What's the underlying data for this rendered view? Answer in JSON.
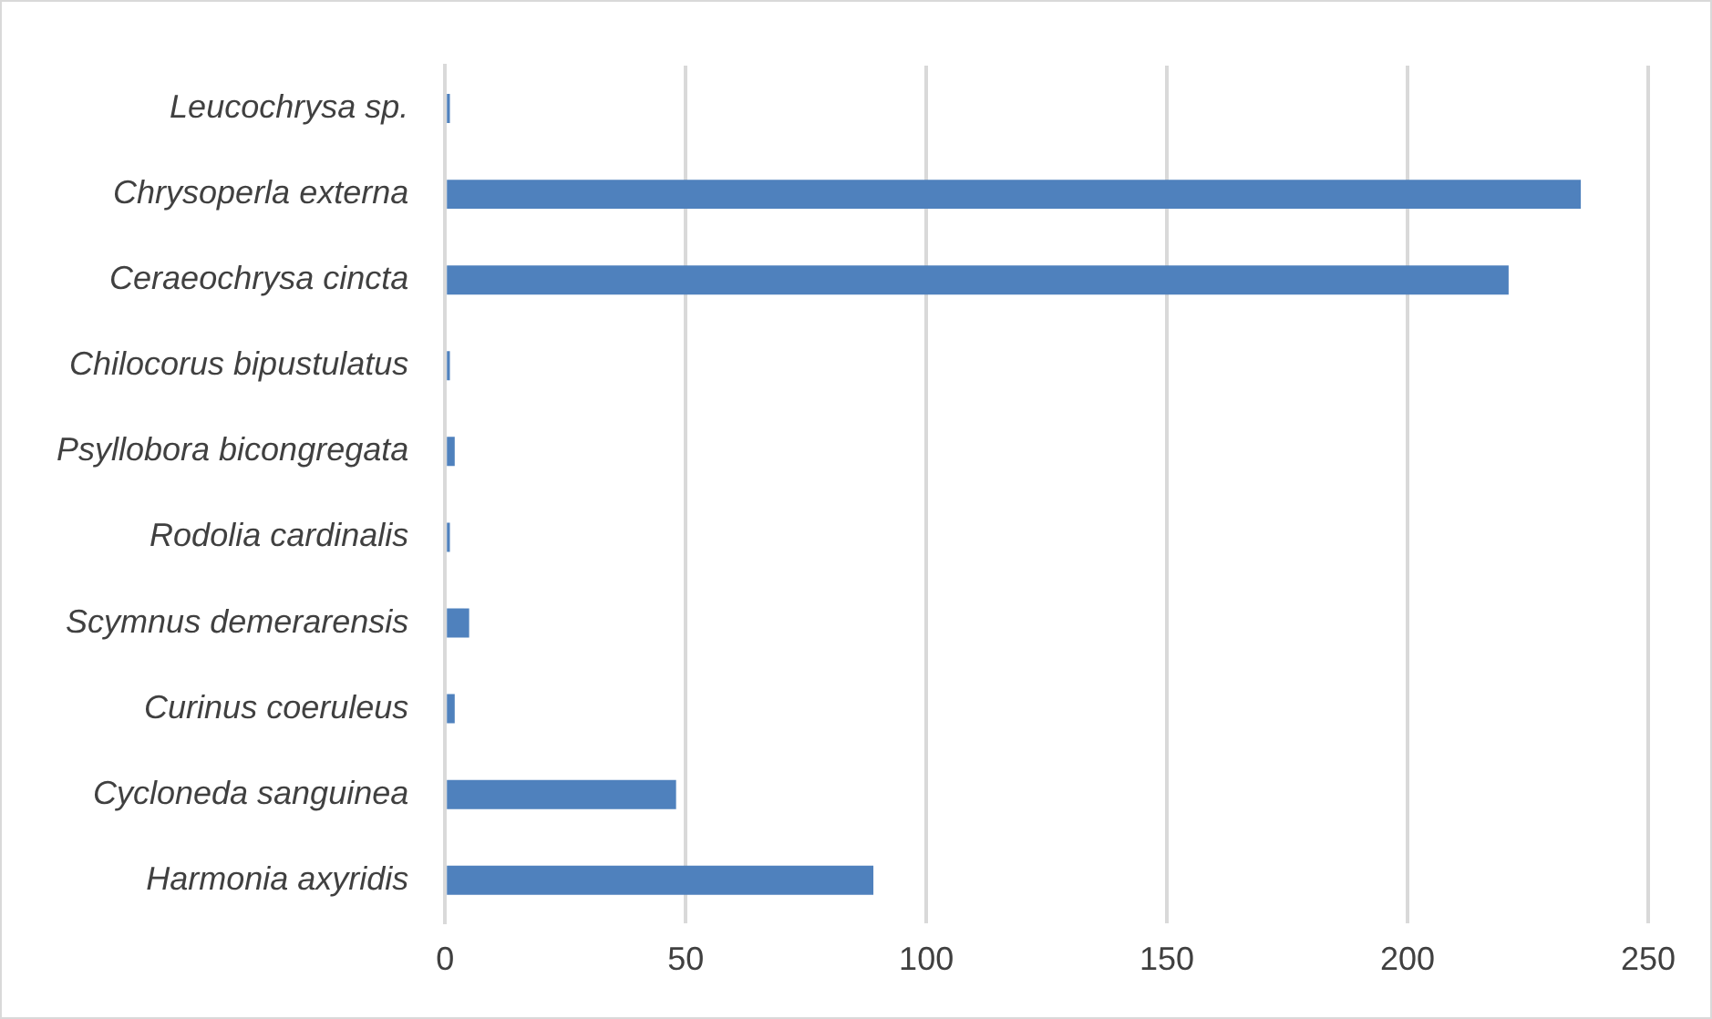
{
  "chart_data": {
    "type": "bar",
    "orientation": "horizontal",
    "categories": [
      "Leucochrysa sp.",
      "Chrysoperla externa",
      "Ceraeochrysa cincta",
      "Chilocorus bipustulatus",
      "Psyllobora bicongregata",
      "Rodolia cardinalis",
      "Scymnus demerarensis",
      "Curinus coeruleus",
      "Cycloneda sanguinea",
      "Harmonia axyridis"
    ],
    "values": [
      1,
      236,
      221,
      1,
      2,
      1,
      5,
      2,
      48,
      89
    ],
    "color": "#4f81bd",
    "xlim": [
      0,
      250
    ],
    "xticks": [
      0,
      50,
      100,
      150,
      200,
      250
    ],
    "grid": "x",
    "legend": false
  }
}
